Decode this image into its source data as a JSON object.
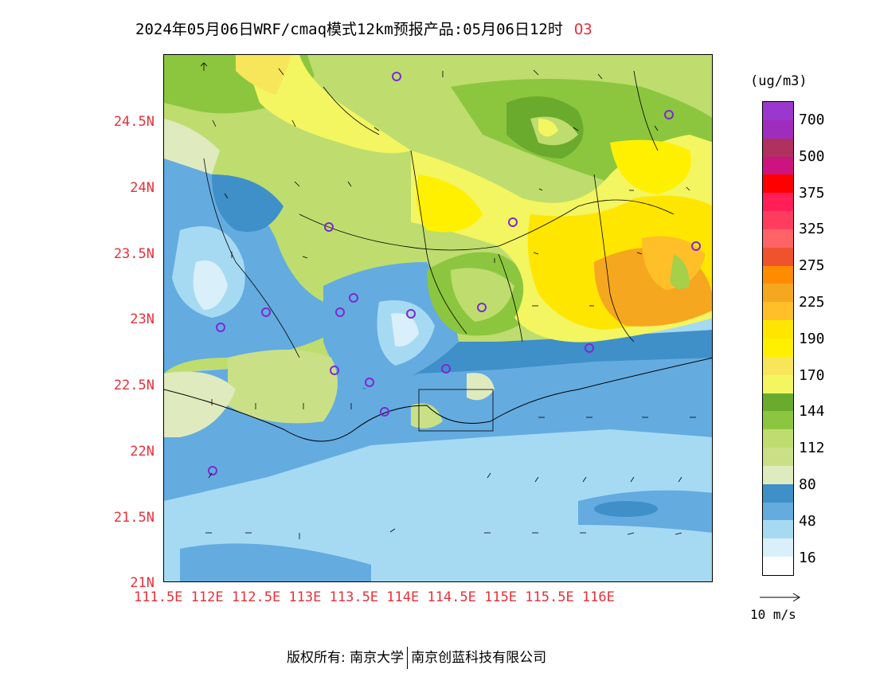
{
  "title": {
    "main": "2024年05月06日WRF/cmaq模式12km预报产品:05月06日12时",
    "species": "O3"
  },
  "axes": {
    "lat_labels": [
      "24.5N",
      "24N",
      "23.5N",
      "23N",
      "22.5N",
      "22N",
      "21.5N",
      "21N"
    ],
    "lon_text": "111.5E 112E 112.5E 113E 113.5E 114E 114.5E 115E 115.5E 116E"
  },
  "colorbar": {
    "unit": "(ug/m3)",
    "labels": [
      "700",
      "500",
      "375",
      "325",
      "275",
      "225",
      "190",
      "170",
      "144",
      "112",
      "80",
      "48",
      "16"
    ],
    "colors": [
      "#9a37cc",
      "#a02cbe",
      "#b0305e",
      "#cc1480",
      "#ff0000",
      "#ff1e55",
      "#fe3c5e",
      "#ff6366",
      "#f0522d",
      "#ff8c00",
      "#f5a71f",
      "#ffbf28",
      "#ffe600",
      "#fff000",
      "#f7e55a",
      "#f3f561",
      "#6aaa2d",
      "#8cc63e",
      "#bedd6e",
      "#cae087",
      "#dfebbe",
      "#3f8fc8",
      "#64abe0",
      "#a6daf3",
      "#d9f0fb",
      "#ffffff"
    ]
  },
  "wind_reference": {
    "label": "10 m/s"
  },
  "footer": {
    "left": "版权所有: 南京大学",
    "right": "南京创蓝科技有限公司"
  }
}
